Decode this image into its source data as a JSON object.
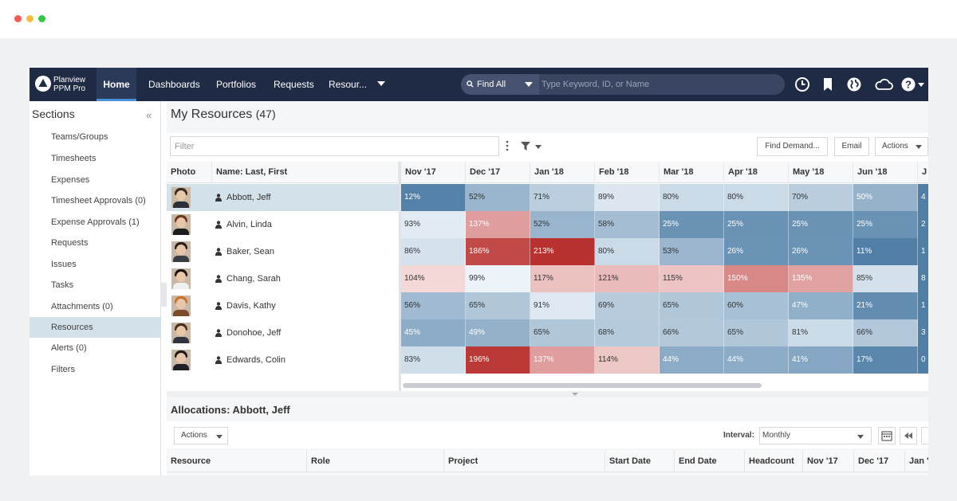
{
  "brand": {
    "line1": "Planview",
    "line2": "PPM Pro"
  },
  "nav": {
    "tabs": [
      {
        "label": "Home"
      },
      {
        "label": "Dashboards"
      },
      {
        "label": "Portfolios"
      },
      {
        "label": "Requests"
      },
      {
        "label": "Resour..."
      }
    ]
  },
  "search": {
    "scope": "Find All",
    "placeholder": "Type Keyword, ID, or Name"
  },
  "icons": [
    "clock-icon",
    "bookmark-icon",
    "globe-icon",
    "cloud-icon",
    "help-icon"
  ],
  "sidebar": {
    "title": "Sections",
    "items": [
      {
        "label": "Teams/Groups"
      },
      {
        "label": "Timesheets"
      },
      {
        "label": "Expenses"
      },
      {
        "label": "Timesheet Approvals (0)"
      },
      {
        "label": "Expense Approvals (1)"
      },
      {
        "label": "Requests"
      },
      {
        "label": "Issues"
      },
      {
        "label": "Tasks"
      },
      {
        "label": "Attachments (0)"
      },
      {
        "label": "Resources"
      },
      {
        "label": "Alerts (0)"
      },
      {
        "label": "Filters"
      }
    ],
    "active": "Resources"
  },
  "main": {
    "title": "My Resources",
    "count": "(47)",
    "filter_placeholder": "Filter",
    "buttons": {
      "find_demand": "Find Demand...",
      "email": "Email",
      "actions": "Actions"
    }
  },
  "grid": {
    "headers": {
      "photo": "Photo",
      "name": "Name: Last, First"
    },
    "months": [
      "Nov '17",
      "Dec '17",
      "Jan '18",
      "Feb '18",
      "Mar '18",
      "Apr '18",
      "May '18",
      "Jun '18",
      "J"
    ],
    "rows": [
      {
        "name": "Abbott, Jeff",
        "values": [
          "12%",
          "52%",
          "71%",
          "89%",
          "80%",
          "80%",
          "70%",
          "50%",
          "4"
        ]
      },
      {
        "name": "Alvin, Linda",
        "values": [
          "93%",
          "137%",
          "52%",
          "58%",
          "25%",
          "25%",
          "25%",
          "25%",
          "2"
        ]
      },
      {
        "name": "Baker, Sean",
        "values": [
          "86%",
          "186%",
          "213%",
          "80%",
          "53%",
          "26%",
          "26%",
          "11%",
          "1"
        ]
      },
      {
        "name": "Chang, Sarah",
        "values": [
          "104%",
          "99%",
          "117%",
          "121%",
          "115%",
          "150%",
          "135%",
          "85%",
          "8"
        ]
      },
      {
        "name": "Davis, Kathy",
        "values": [
          "56%",
          "65%",
          "91%",
          "69%",
          "65%",
          "60%",
          "47%",
          "21%",
          "1"
        ]
      },
      {
        "name": "Donohoe, Jeff",
        "values": [
          "45%",
          "49%",
          "65%",
          "68%",
          "66%",
          "65%",
          "81%",
          "66%",
          "3"
        ]
      },
      {
        "name": "Edwards, Colin",
        "values": [
          "83%",
          "196%",
          "137%",
          "114%",
          "44%",
          "44%",
          "41%",
          "17%",
          "0"
        ]
      }
    ],
    "selected_row": "Abbott, Jeff"
  },
  "allocations": {
    "title": "Allocations: Abbott, Jeff",
    "actions_label": "Actions",
    "interval_label": "Interval:",
    "interval_value": "Monthly",
    "columns": [
      "Resource",
      "Role",
      "Project",
      "Start Date",
      "End Date",
      "Headcount",
      "Nov '17",
      "Dec '17",
      "Jan '"
    ]
  },
  "colors": {
    "nav_bg": "#1f2a44",
    "accent": "#4a90d9",
    "selected_bg": "#d3e1ea",
    "heat_low": "#4f7ea6",
    "heat_high": "#b8312f"
  }
}
